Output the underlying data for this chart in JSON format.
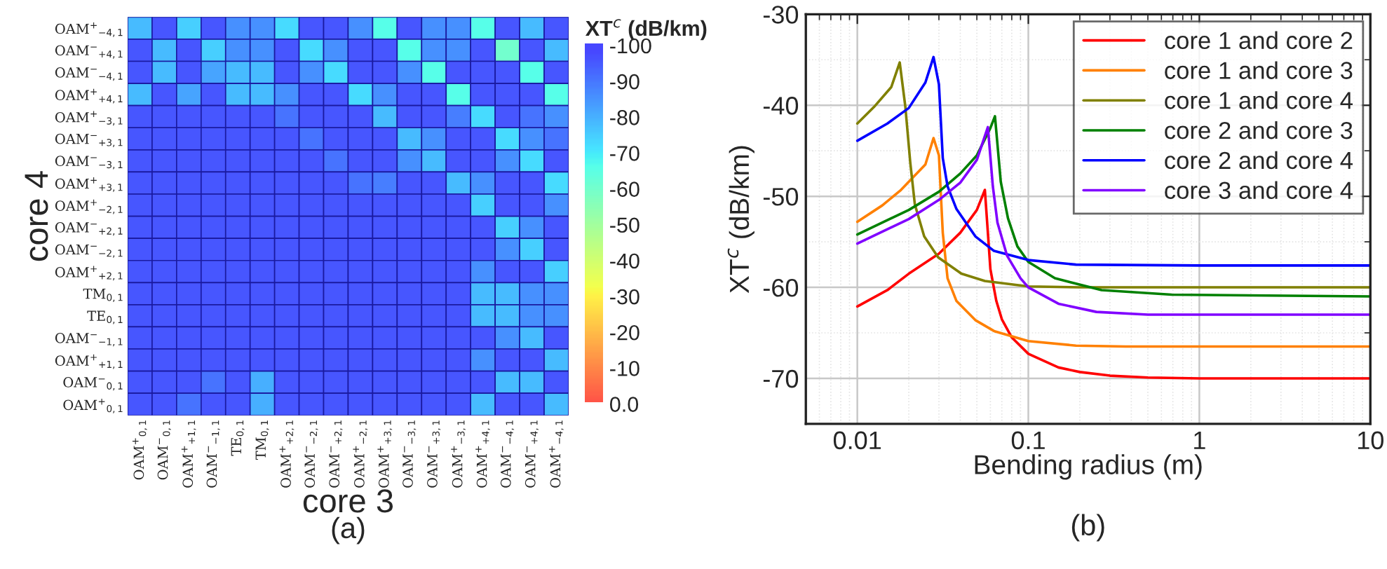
{
  "chart_data": [
    {
      "type": "heatmap",
      "xlabel": "core 3",
      "ylabel": "core 4",
      "clabel": "XT$^{c}$ (dB/km)",
      "annotations": [
        "(a)"
      ],
      "categories": [
        "OAM$^{+}$$_{0,1}$",
        "OAM$^{−}$$_{0,1}$",
        "OAM$^{+}$$_{+1,1}$",
        "OAM$^{−}$$_{−1,1}$",
        "TE$_{0,1}$",
        "TM$_{0,1}$",
        "OAM$^{+}$$_{+2,1}$",
        "OAM$^{−}$$_{−2,1}$",
        "OAM$^{−}$$_{+2,1}$",
        "OAM$^{+}$$_{−2,1}$",
        "OAM$^{+}$$_{+3,1}$",
        "OAM$^{−}$$_{−3,1}$",
        "OAM$^{−}$$_{+3,1}$",
        "OAM$^{+}$$_{−3,1}$",
        "OAM$^{+}$$_{+4,1}$",
        "OAM$^{−}$$_{−4,1}$",
        "OAM$^{−}$$_{+4,1}$",
        "OAM$^{+}$$_{−4,1}$"
      ],
      "y_categories": [
        "OAM$^{+}$$_{−4,1}$",
        "OAM$^{−}$$_{+4,1}$",
        "OAM$^{−}$$_{−4,1}$",
        "OAM$^{+}$$_{+4,1}$",
        "OAM$^{+}$$_{−3,1}$",
        "OAM$^{−}$$_{+3,1}$",
        "OAM$^{−}$$_{−3,1}$",
        "OAM$^{+}$$_{+3,1}$",
        "OAM$^{+}$$_{−2,1}$",
        "OAM$^{−}$$_{+2,1}$",
        "OAM$^{−}$$_{−2,1}$",
        "OAM$^{+}$$_{+2,1}$",
        "TM$_{0,1}$",
        "TE$_{0,1}$",
        "OAM$^{−}$$_{−1,1}$",
        "OAM$^{+}$$_{+1,1}$",
        "OAM$^{−}$$_{0,1}$",
        "OAM$^{+}$$_{0,1}$"
      ],
      "cells": [
        [
          -78,
          -95,
          -74,
          -95,
          -85,
          -85,
          -72,
          -95,
          -95,
          -85,
          -66,
          -95,
          -85,
          -85,
          -66,
          -95,
          -78,
          -95
        ],
        [
          -95,
          -78,
          -95,
          -74,
          -85,
          -85,
          -95,
          -72,
          -85,
          -95,
          -95,
          -66,
          -85,
          -85,
          -95,
          -60,
          -95,
          -78
        ],
        [
          -95,
          -78,
          -95,
          -82,
          -78,
          -78,
          -95,
          -85,
          -72,
          -95,
          -95,
          -85,
          -66,
          -95,
          -95,
          -95,
          -66,
          -95
        ],
        [
          -78,
          -95,
          -82,
          -95,
          -78,
          -78,
          -85,
          -95,
          -95,
          -72,
          -85,
          -95,
          -95,
          -66,
          -95,
          -95,
          -95,
          -66
        ],
        [
          -95,
          -95,
          -95,
          -95,
          -95,
          -95,
          -90,
          -95,
          -95,
          -95,
          -78,
          -95,
          -95,
          -88,
          -72,
          -95,
          -90,
          -85
        ],
        [
          -95,
          -95,
          -95,
          -95,
          -95,
          -95,
          -95,
          -90,
          -95,
          -95,
          -95,
          -78,
          -85,
          -95,
          -95,
          -72,
          -85,
          -90
        ],
        [
          -95,
          -95,
          -95,
          -95,
          -95,
          -95,
          -95,
          -95,
          -90,
          -95,
          -95,
          -85,
          -78,
          -95,
          -95,
          -85,
          -72,
          -95
        ],
        [
          -95,
          -95,
          -95,
          -95,
          -95,
          -95,
          -95,
          -95,
          -95,
          -90,
          -88,
          -95,
          -95,
          -78,
          -85,
          -95,
          -95,
          -72
        ],
        [
          -95,
          -95,
          -95,
          -95,
          -95,
          -95,
          -95,
          -95,
          -95,
          -95,
          -95,
          -95,
          -95,
          -95,
          -74,
          -95,
          -95,
          -85
        ],
        [
          -95,
          -95,
          -95,
          -95,
          -95,
          -95,
          -95,
          -95,
          -95,
          -95,
          -95,
          -95,
          -95,
          -95,
          -95,
          -74,
          -85,
          -95
        ],
        [
          -95,
          -95,
          -95,
          -95,
          -95,
          -95,
          -95,
          -95,
          -95,
          -95,
          -95,
          -95,
          -95,
          -95,
          -95,
          -85,
          -74,
          -95
        ],
        [
          -95,
          -95,
          -95,
          -95,
          -95,
          -95,
          -95,
          -95,
          -95,
          -95,
          -95,
          -95,
          -95,
          -95,
          -85,
          -95,
          -95,
          -74
        ],
        [
          -95,
          -95,
          -95,
          -95,
          -95,
          -95,
          -95,
          -95,
          -95,
          -95,
          -95,
          -95,
          -95,
          -95,
          -78,
          -78,
          -85,
          -85
        ],
        [
          -95,
          -95,
          -95,
          -95,
          -95,
          -95,
          -95,
          -95,
          -95,
          -95,
          -95,
          -95,
          -95,
          -95,
          -78,
          -78,
          -85,
          -85
        ],
        [
          -95,
          -95,
          -95,
          -95,
          -95,
          -95,
          -95,
          -95,
          -95,
          -95,
          -95,
          -95,
          -95,
          -95,
          -95,
          -85,
          -78,
          -95
        ],
        [
          -95,
          -95,
          -95,
          -95,
          -95,
          -95,
          -95,
          -95,
          -95,
          -95,
          -95,
          -95,
          -95,
          -95,
          -85,
          -95,
          -95,
          -78
        ],
        [
          -95,
          -95,
          -95,
          -90,
          -95,
          -80,
          -95,
          -95,
          -95,
          -95,
          -95,
          -95,
          -95,
          -95,
          -95,
          -78,
          -78,
          -95
        ],
        [
          -95,
          -95,
          -90,
          -95,
          -95,
          -80,
          -95,
          -95,
          -95,
          -95,
          -95,
          -95,
          -95,
          -95,
          -78,
          -95,
          -95,
          -78
        ]
      ],
      "clim": [
        0,
        -100
      ],
      "cticks": [
        -100,
        -90,
        -80,
        -70,
        -60,
        -50,
        -40,
        -30,
        -20,
        -10,
        {
          "value": 0,
          "label": "0.0"
        }
      ]
    },
    {
      "type": "line",
      "xlabel": "Bending radius (m)",
      "ylabel": "XT$^{c}$ (dB/km)",
      "annotations": [
        "(b)"
      ],
      "log": "x",
      "xlim": [
        0.005,
        10
      ],
      "xticks": [
        0.01,
        0.1,
        1,
        10
      ],
      "ylim": [
        -75,
        -30
      ],
      "yticks": [
        -30,
        -40,
        -50,
        -60,
        -70
      ],
      "grid": true,
      "legend": "top right",
      "series": [
        {
          "name": "core 1 and core 2",
          "color": "#ff0000",
          "x": [
            0.01,
            0.015,
            0.02,
            0.03,
            0.04,
            0.05,
            0.0557,
            0.058,
            0.06,
            0.065,
            0.07,
            0.08,
            0.1,
            0.15,
            0.2,
            0.3,
            0.5,
            1,
            10
          ],
          "values": [
            -62.1,
            -60.3,
            -58.5,
            -56.3,
            -54,
            -51.5,
            -49.3,
            -54,
            -58,
            -61.5,
            -63.5,
            -65.5,
            -67.3,
            -68.8,
            -69.3,
            -69.7,
            -69.9,
            -70,
            -70
          ]
        },
        {
          "name": "core 1 and core 3",
          "color": "#ff8000",
          "x": [
            0.01,
            0.014,
            0.018,
            0.025,
            0.0279,
            0.03,
            0.0316,
            0.0337,
            0.038,
            0.049,
            0.063,
            0.1,
            0.19,
            0.37,
            1,
            10
          ],
          "values": [
            -52.8,
            -51,
            -49.3,
            -46.5,
            -43.6,
            -45.5,
            -54,
            -59,
            -61.5,
            -63.6,
            -64.8,
            -65.9,
            -66.4,
            -66.5,
            -66.5,
            -66.5
          ]
        },
        {
          "name": "core 1 and core 4",
          "color": "#808000",
          "x": [
            0.01,
            0.0125,
            0.0158,
            0.0177,
            0.0191,
            0.0204,
            0.0217,
            0.0246,
            0.0297,
            0.0406,
            0.0557,
            0.1,
            0.2,
            1,
            10
          ],
          "values": [
            -42,
            -40.2,
            -38,
            -35.3,
            -40.2,
            -46.3,
            -50.9,
            -54.4,
            -56.7,
            -58.5,
            -59.3,
            -59.9,
            -60,
            -60,
            -60
          ]
        },
        {
          "name": "core 2 and core 3",
          "color": "#008000",
          "x": [
            0.01,
            0.02,
            0.03,
            0.04,
            0.05,
            0.06,
            0.0638,
            0.069,
            0.076,
            0.0863,
            0.1,
            0.143,
            0.268,
            0.69,
            10
          ],
          "values": [
            -54.2,
            -51.5,
            -49.5,
            -47.5,
            -45.5,
            -42.5,
            -41.2,
            -48.4,
            -52.4,
            -55.5,
            -57.2,
            -59,
            -60.3,
            -60.8,
            -61
          ]
        },
        {
          "name": "core 2 and core 4",
          "color": "#0000ff",
          "x": [
            0.01,
            0.015,
            0.02,
            0.025,
            0.0279,
            0.03,
            0.0316,
            0.0337,
            0.038,
            0.049,
            0.063,
            0.1,
            0.19,
            1,
            10
          ],
          "values": [
            -43.9,
            -42,
            -40.3,
            -37.5,
            -34.7,
            -37.7,
            -45.8,
            -48.9,
            -51.4,
            -54.4,
            -56,
            -57,
            -57.5,
            -57.6,
            -57.6
          ]
        },
        {
          "name": "core 3 and core 4",
          "color": "#8000ff",
          "x": [
            0.01,
            0.02,
            0.03,
            0.04,
            0.05,
            0.058,
            0.062,
            0.066,
            0.075,
            0.09,
            0.1,
            0.15,
            0.25,
            0.5,
            10
          ],
          "values": [
            -55.2,
            -52.5,
            -50.4,
            -48.5,
            -46,
            -42.4,
            -48.9,
            -52.9,
            -56.5,
            -59,
            -60,
            -61.8,
            -62.7,
            -63,
            -63
          ]
        }
      ]
    }
  ]
}
